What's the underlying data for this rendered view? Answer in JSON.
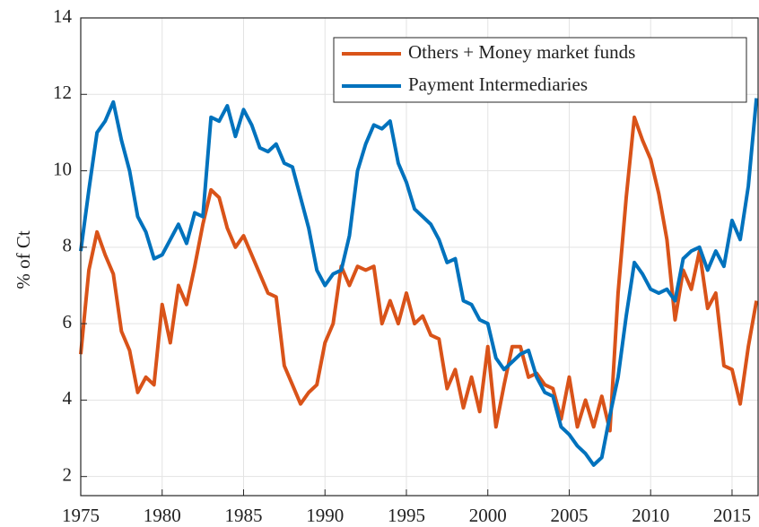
{
  "chart_data": {
    "type": "line",
    "ylabel": "% of Ct",
    "x": [
      1975,
      1975.5,
      1976,
      1976.5,
      1977,
      1977.5,
      1978,
      1978.5,
      1979,
      1979.5,
      1980,
      1980.5,
      1981,
      1981.5,
      1982,
      1982.5,
      1983,
      1983.5,
      1984,
      1984.5,
      1985,
      1985.5,
      1986,
      1986.5,
      1987,
      1987.5,
      1988,
      1988.5,
      1989,
      1989.5,
      1990,
      1990.5,
      1991,
      1991.5,
      1992,
      1992.5,
      1993,
      1993.5,
      1994,
      1994.5,
      1995,
      1995.5,
      1996,
      1996.5,
      1997,
      1997.5,
      1998,
      1998.5,
      1999,
      1999.5,
      2000,
      2000.5,
      2001,
      2001.5,
      2002,
      2002.5,
      2003,
      2003.5,
      2004,
      2004.5,
      2005,
      2005.5,
      2006,
      2006.5,
      2007,
      2007.5,
      2008,
      2008.5,
      2009,
      2009.5,
      2010,
      2010.5,
      2011,
      2011.5,
      2012,
      2012.5,
      2013,
      2013.5,
      2014,
      2014.5,
      2015,
      2015.5,
      2016,
      2016.5
    ],
    "series": [
      {
        "name": "Others + Money market funds",
        "color": "#d95319",
        "values": [
          5.2,
          7.4,
          8.4,
          7.8,
          7.3,
          5.8,
          5.3,
          4.2,
          4.6,
          4.4,
          6.5,
          5.5,
          7.0,
          6.5,
          7.5,
          8.6,
          9.5,
          9.3,
          8.5,
          8.0,
          8.3,
          7.8,
          7.3,
          6.8,
          6.7,
          4.9,
          4.4,
          3.9,
          4.2,
          4.4,
          5.5,
          6.0,
          7.5,
          7.0,
          7.5,
          7.4,
          7.5,
          6.0,
          6.6,
          6.0,
          6.8,
          6.0,
          6.2,
          5.7,
          5.6,
          4.3,
          4.8,
          3.8,
          4.6,
          3.7,
          5.4,
          3.3,
          4.4,
          5.4,
          5.4,
          4.6,
          4.7,
          4.4,
          4.3,
          3.5,
          4.6,
          3.3,
          4.0,
          3.3,
          4.1,
          3.2,
          6.8,
          9.3,
          11.4,
          10.8,
          10.3,
          9.4,
          8.2,
          6.1,
          7.4,
          6.9,
          7.9,
          6.4,
          6.8,
          4.9,
          4.8,
          3.9,
          5.4,
          6.6
        ]
      },
      {
        "name": "Payment Intermediaries",
        "color": "#0072bd",
        "values": [
          7.9,
          9.5,
          11.0,
          11.3,
          11.8,
          10.8,
          10.0,
          8.8,
          8.4,
          7.7,
          7.8,
          8.2,
          8.6,
          8.1,
          8.9,
          8.8,
          11.4,
          11.3,
          11.7,
          10.9,
          11.6,
          11.2,
          10.6,
          10.5,
          10.7,
          10.2,
          10.1,
          9.3,
          8.5,
          7.4,
          7.0,
          7.3,
          7.4,
          8.3,
          10.0,
          10.7,
          11.2,
          11.1,
          11.3,
          10.2,
          9.7,
          9.0,
          8.8,
          8.6,
          8.2,
          7.6,
          7.7,
          6.6,
          6.5,
          6.1,
          6.0,
          5.1,
          4.8,
          5.0,
          5.2,
          5.3,
          4.6,
          4.2,
          4.1,
          3.3,
          3.1,
          2.8,
          2.6,
          2.3,
          2.5,
          3.6,
          4.6,
          6.2,
          7.6,
          7.3,
          6.9,
          6.8,
          6.9,
          6.6,
          7.7,
          7.9,
          8.0,
          7.4,
          7.9,
          7.5,
          8.7,
          8.2,
          9.6,
          11.9
        ]
      }
    ],
    "xlim": [
      1975,
      2016.6
    ],
    "ylim": [
      1.5,
      14
    ],
    "xticks": [
      1975,
      1980,
      1985,
      1990,
      1995,
      2000,
      2005,
      2010,
      2015
    ],
    "yticks": [
      2,
      4,
      6,
      8,
      10,
      12,
      14
    ],
    "grid": true,
    "legend": "top-right"
  }
}
